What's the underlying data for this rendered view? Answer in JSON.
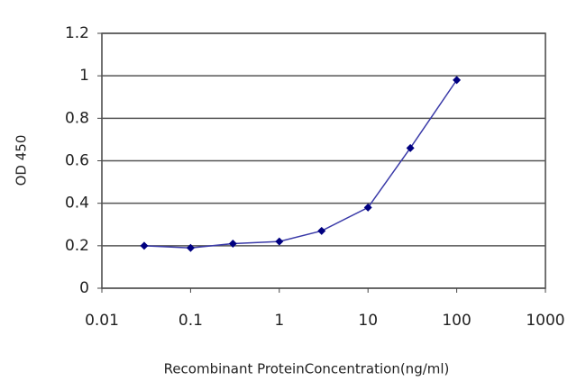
{
  "chart_data": {
    "type": "line",
    "x": [
      0.03,
      0.1,
      0.3,
      1,
      3,
      10,
      30,
      100
    ],
    "values": [
      0.2,
      0.19,
      0.21,
      0.22,
      0.27,
      0.38,
      0.66,
      0.98
    ],
    "color": "#3a3aa8",
    "marker_color": "#000080",
    "xlabel": "Recombinant ProteinConcentration(ng/ml)",
    "ylabel": "OD 450",
    "xscale": "log",
    "xlim": [
      0.01,
      1000
    ],
    "xticks": [
      0.01,
      0.1,
      1,
      10,
      100,
      1000
    ],
    "ylim": [
      0,
      1.2
    ],
    "yticks": [
      0,
      0.2,
      0.4,
      0.6,
      0.8,
      1,
      1.2
    ],
    "grid": true
  }
}
